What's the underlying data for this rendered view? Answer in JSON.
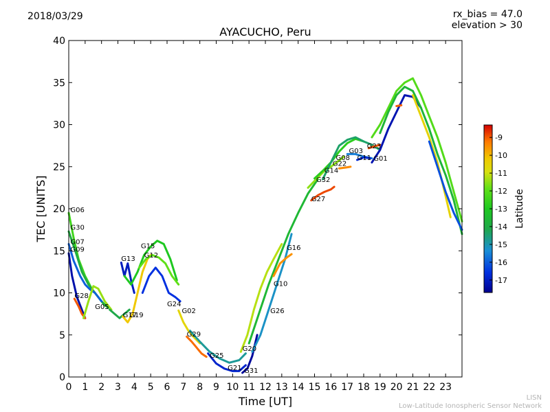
{
  "header": {
    "date": "2018/03/29",
    "rx_bias_line": "rx_bias = 47.0",
    "elevation_line": "elevation > 30"
  },
  "footer": {
    "line1": "LISN",
    "line2": "Low-Latitude Ionospheric Sensor Network"
  },
  "colors": {
    "lat_minus17": "#00008f",
    "lat_minus16": "#1a8fd6",
    "lat_minus15": "#1fa84a",
    "lat_minus14": "#1ec820",
    "lat_minus13": "#38e018",
    "lat_minus12": "#b0e020",
    "lat_minus11": "#f0c800",
    "lat_minus10": "#ff7a00",
    "lat_minus9": "#d40000"
  },
  "chart_data": {
    "type": "line",
    "title": "AYACUCHO, Peru",
    "xlabel": "Time [UT]",
    "ylabel": "TEC [UNITS]",
    "xlim": [
      0,
      24
    ],
    "ylim": [
      0,
      40
    ],
    "xticks": [
      "0",
      "1",
      "2",
      "3",
      "4",
      "5",
      "6",
      "7",
      "8",
      "9",
      "10",
      "11",
      "12",
      "13",
      "14",
      "15",
      "16",
      "17",
      "18",
      "19",
      "20",
      "21",
      "22",
      "23"
    ],
    "yticks": [
      "0",
      "5",
      "10",
      "15",
      "20",
      "25",
      "30",
      "35",
      "40"
    ],
    "colorbar": {
      "label": "Latitude",
      "ticks": [
        "-9",
        "-10",
        "-11",
        "-12",
        "-13",
        "-14",
        "-15",
        "-16",
        "-17"
      ],
      "range": [
        -17.7,
        -8.3
      ]
    },
    "series": [
      {
        "name": "G06",
        "label_at": [
          0.1,
          19.6
        ],
        "lat": -13.5,
        "x": [
          0.0,
          0.3,
          0.6,
          1.0,
          1.4,
          1.8,
          2.2
        ],
        "y": [
          19.5,
          16.5,
          14.0,
          12.0,
          10.5,
          9.5,
          8.5
        ]
      },
      {
        "name": "G30",
        "label_at": [
          0.1,
          17.5
        ],
        "lat": -14.8,
        "x": [
          0.0,
          0.4,
          0.8,
          1.2,
          1.6,
          2.0,
          2.4
        ],
        "y": [
          17.3,
          15.0,
          12.5,
          11.0,
          10.0,
          9.0,
          8.2
        ]
      },
      {
        "name": "G07",
        "label_at": [
          0.1,
          15.8
        ],
        "lat": -16.2,
        "x": [
          0.0,
          0.3,
          0.7,
          1.0,
          1.3,
          1.6,
          2.0
        ],
        "y": [
          15.8,
          13.8,
          12.0,
          11.0,
          10.4,
          10.0,
          9.0
        ]
      },
      {
        "name": "G09",
        "label_at": [
          0.1,
          14.9
        ],
        "lat": -17.3,
        "x": [
          0.0,
          0.2,
          0.5,
          0.8,
          1.0
        ],
        "y": [
          14.7,
          12.0,
          9.5,
          8.0,
          7.0
        ]
      },
      {
        "name": "G28",
        "label_at": [
          0.35,
          9.4
        ],
        "lat": -9.5,
        "x": [
          0.35,
          0.6,
          0.8,
          1.0
        ],
        "y": [
          9.3,
          8.4,
          7.5,
          7.0
        ]
      },
      {
        "name": "G05",
        "label_at": [
          1.6,
          8.1
        ],
        "lat": -12.5,
        "x": [
          0.9,
          1.2,
          1.5,
          1.8,
          2.2,
          2.6
        ],
        "y": [
          7.0,
          9.0,
          10.8,
          10.5,
          9.0,
          8.0
        ]
      },
      {
        "name": "G17",
        "label_at": [
          3.3,
          7.1
        ],
        "lat": -15.0,
        "x": [
          2.5,
          2.8,
          3.1,
          3.4,
          3.7
        ],
        "y": [
          8.0,
          7.5,
          7.0,
          7.5,
          8.0
        ]
      },
      {
        "name": "G19",
        "label_at": [
          3.7,
          7.1
        ],
        "lat": -11.0,
        "x": [
          3.3,
          3.6,
          3.9,
          4.2,
          4.5,
          4.8,
          5.0
        ],
        "y": [
          7.2,
          6.5,
          7.5,
          10.0,
          12.5,
          14.0,
          14.5
        ]
      },
      {
        "name": "G13",
        "label_at": [
          3.2,
          13.8
        ],
        "lat": -17.0,
        "x": [
          3.2,
          3.4,
          3.6,
          3.8,
          4.0
        ],
        "y": [
          13.6,
          12.0,
          13.5,
          11.5,
          10.0
        ]
      },
      {
        "name": "G15",
        "label_at": [
          4.4,
          15.3
        ],
        "lat": -14.0,
        "x": [
          3.4,
          3.8,
          4.2,
          4.6,
          5.0,
          5.4,
          5.8,
          6.2,
          6.6
        ],
        "y": [
          12.0,
          11.0,
          12.5,
          14.5,
          15.5,
          16.2,
          15.8,
          14.0,
          11.5
        ]
      },
      {
        "name": "G12",
        "label_at": [
          4.6,
          14.2
        ],
        "lat": -13.0,
        "x": [
          4.3,
          4.7,
          5.1,
          5.5,
          5.9,
          6.3,
          6.7
        ],
        "y": [
          13.0,
          14.0,
          14.5,
          14.2,
          13.5,
          12.0,
          11.0
        ]
      },
      {
        "name": "G24",
        "label_at": [
          6.0,
          8.4
        ],
        "lat": -16.5,
        "x": [
          4.5,
          4.9,
          5.3,
          5.7,
          6.1,
          6.5,
          6.8
        ],
        "y": [
          10.0,
          12.0,
          13.0,
          12.0,
          10.0,
          9.5,
          9.0
        ]
      },
      {
        "name": "G02",
        "label_at": [
          6.9,
          7.6
        ],
        "lat": -11.5,
        "x": [
          6.7,
          7.0,
          7.3,
          7.6,
          8.0
        ],
        "y": [
          7.9,
          6.5,
          5.5,
          4.8,
          4.0
        ]
      },
      {
        "name": "G29",
        "label_at": [
          7.2,
          4.8
        ],
        "lat": -9.8,
        "x": [
          7.2,
          7.5,
          7.8,
          8.1,
          8.4
        ],
        "y": [
          4.8,
          4.2,
          3.5,
          2.8,
          2.4
        ]
      },
      {
        "name": "G25",
        "label_at": [
          8.6,
          2.3
        ],
        "lat": -15.5,
        "x": [
          7.4,
          8.0,
          8.6,
          9.2,
          9.8,
          10.4,
          10.8
        ],
        "y": [
          5.5,
          4.2,
          3.0,
          2.2,
          1.7,
          2.0,
          2.8
        ]
      },
      {
        "name": "G21",
        "label_at": [
          9.7,
          0.8
        ],
        "lat": -16.8,
        "x": [
          8.5,
          9.0,
          9.5,
          10.0,
          10.4,
          10.8
        ],
        "y": [
          2.8,
          1.6,
          1.0,
          0.7,
          0.7,
          1.4
        ]
      },
      {
        "name": "G20",
        "label_at": [
          10.6,
          3.1
        ],
        "lat": -12.2,
        "x": [
          10.5,
          10.9,
          11.3,
          11.7,
          12.1,
          12.5,
          13.0
        ],
        "y": [
          3.0,
          5.0,
          8.0,
          10.5,
          12.5,
          14.0,
          15.8
        ]
      },
      {
        "name": "G31",
        "label_at": [
          10.7,
          0.5
        ],
        "lat": -17.5,
        "x": [
          10.6,
          10.9,
          11.2,
          11.5
        ],
        "y": [
          0.5,
          1.0,
          2.5,
          5.0
        ]
      },
      {
        "name": "G26",
        "label_at": [
          12.3,
          7.6
        ],
        "lat": -15.8,
        "x": [
          11.2,
          11.7,
          12.2,
          12.7,
          13.2,
          13.6
        ],
        "y": [
          3.0,
          5.0,
          8.0,
          11.0,
          14.0,
          17.0
        ]
      },
      {
        "name": "G10",
        "label_at": [
          12.5,
          10.8
        ],
        "lat": -14.5,
        "x": [
          11.0,
          11.6,
          12.2,
          12.8,
          13.4,
          14.0,
          14.6,
          15.2
        ],
        "y": [
          4.0,
          7.5,
          11.0,
          14.0,
          17.0,
          19.5,
          21.8,
          23.5
        ]
      },
      {
        "name": "G16",
        "label_at": [
          13.3,
          15.1
        ],
        "lat": -10.3,
        "x": [
          12.5,
          12.9,
          13.3,
          13.6
        ],
        "y": [
          12.0,
          13.5,
          14.2,
          14.6
        ]
      },
      {
        "name": "G27",
        "label_at": [
          14.8,
          20.9
        ],
        "lat": -9.3,
        "x": [
          14.8,
          15.2,
          15.6,
          16.0,
          16.2
        ],
        "y": [
          21.0,
          21.6,
          22.0,
          22.3,
          22.6
        ]
      },
      {
        "name": "G32",
        "label_at": [
          15.1,
          23.2
        ],
        "lat": -12.6,
        "x": [
          14.6,
          15.1,
          15.6,
          16.0,
          16.4,
          16.8
        ],
        "y": [
          22.5,
          23.5,
          24.5,
          25.0,
          25.6,
          26.2
        ]
      },
      {
        "name": "G14",
        "label_at": [
          15.6,
          24.3
        ],
        "lat": -13.8,
        "x": [
          15.0,
          15.5,
          16.0,
          16.5,
          17.0,
          17.5,
          18.0
        ],
        "y": [
          23.6,
          24.5,
          25.5,
          26.8,
          27.8,
          28.3,
          28.0
        ]
      },
      {
        "name": "G22",
        "label_at": [
          16.1,
          25.1
        ],
        "lat": -10.2,
        "x": [
          16.5,
          16.9,
          17.2
        ],
        "y": [
          24.8,
          24.9,
          25.0
        ]
      },
      {
        "name": "G08",
        "label_at": [
          16.3,
          25.8
        ],
        "lat": -15.2,
        "x": [
          15.5,
          16.0,
          16.5,
          17.0,
          17.5,
          18.0,
          18.5,
          19.0
        ],
        "y": [
          23.5,
          25.5,
          27.5,
          28.2,
          28.5,
          28.0,
          27.6,
          27.0
        ]
      },
      {
        "name": "G03",
        "label_at": [
          17.1,
          26.6
        ],
        "lat": -16.0,
        "x": [
          17.0,
          17.5,
          18.0,
          18.5
        ],
        "y": [
          26.5,
          26.5,
          26.2,
          26.0
        ]
      },
      {
        "name": "G11",
        "label_at": [
          17.6,
          25.8
        ],
        "lat": -16.7,
        "x": [
          17.6,
          18.0,
          18.4
        ],
        "y": [
          25.8,
          26.1,
          26.0
        ]
      },
      {
        "name": "G23",
        "label_at": [
          18.2,
          27.2
        ],
        "lat": -9.4,
        "x": [
          18.3,
          18.6,
          19.0
        ],
        "y": [
          27.2,
          27.4,
          27.6
        ]
      },
      {
        "name": "G01",
        "label_at": [
          18.6,
          25.7
        ],
        "lat": -17.2,
        "x": [
          18.5,
          19.0,
          19.5,
          20.0,
          20.5,
          21.0,
          21.5
        ],
        "y": [
          25.5,
          27.0,
          29.5,
          31.5,
          33.5,
          33.3,
          32.0
        ]
      },
      {
        "name": "",
        "label_at": null,
        "lat": -13.2,
        "x": [
          18.5,
          19.0,
          19.5,
          20.0,
          20.5,
          21.0,
          21.5,
          22.0,
          22.5,
          23.0,
          23.5,
          24.0
        ],
        "y": [
          28.5,
          30.0,
          32.0,
          34.0,
          35.0,
          35.5,
          33.5,
          31.0,
          28.5,
          25.5,
          22.0,
          18.5
        ]
      },
      {
        "name": "",
        "label_at": null,
        "lat": -14.6,
        "x": [
          19.0,
          19.5,
          20.0,
          20.5,
          21.0,
          21.5,
          22.0,
          22.5,
          23.0,
          23.5,
          24.0
        ],
        "y": [
          29.0,
          31.5,
          33.5,
          34.5,
          34.0,
          32.0,
          29.5,
          26.5,
          24.0,
          21.0,
          17.0
        ]
      },
      {
        "name": "",
        "label_at": null,
        "lat": -11.4,
        "x": [
          21.0,
          21.5,
          22.0,
          22.5,
          23.0,
          23.3
        ],
        "y": [
          33.5,
          31.0,
          28.5,
          25.5,
          21.5,
          19.0
        ]
      },
      {
        "name": "",
        "label_at": null,
        "lat": -9.6,
        "x": [
          20.0,
          20.3
        ],
        "y": [
          32.2,
          32.3
        ]
      },
      {
        "name": "",
        "label_at": null,
        "lat": -16.3,
        "x": [
          22.0,
          22.5,
          23.0,
          23.5,
          24.0
        ],
        "y": [
          28.0,
          25.0,
          22.0,
          19.5,
          17.5
        ]
      }
    ]
  }
}
